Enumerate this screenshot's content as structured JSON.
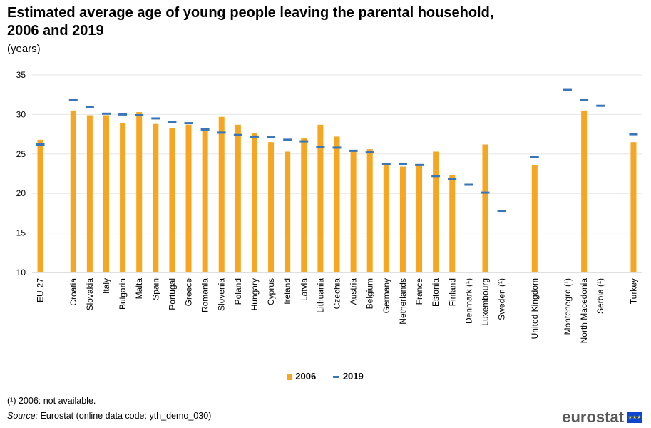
{
  "title": "Estimated average age of young people leaving the parental household, 2006 and 2019",
  "subtitle": "(years)",
  "footnote": "(¹) 2006: not available.",
  "source_label": "Source:",
  "source_text": " Eurostat (online data code: yth_demo_030)",
  "logo_text": "eurostat",
  "colors": {
    "series_2006": "#f5a623",
    "series_2019": "#3a75b8",
    "grid": "#e6e6e6"
  },
  "chart_data": {
    "type": "bar",
    "ylim": [
      10,
      35
    ],
    "yticks": [
      10,
      15,
      20,
      25,
      30,
      35
    ],
    "grid": true,
    "legend_position": "bottom",
    "gap_after": [
      "EU-27",
      "Sweden (¹)",
      "United Kingdom",
      "Serbia (¹)"
    ],
    "categories": [
      "EU-27",
      "Croatia",
      "Slovakia",
      "Italy",
      "Bulgaria",
      "Malta",
      "Spain",
      "Portugal",
      "Greece",
      "Romania",
      "Slovenia",
      "Poland",
      "Hungary",
      "Cyprus",
      "Ireland",
      "Latvia",
      "Lithuania",
      "Czechia",
      "Austria",
      "Belgium",
      "Germany",
      "Netherlands",
      "France",
      "Estonia",
      "Finland",
      "Denmark (¹)",
      "Luxembourg",
      "Sweden (¹)",
      "United Kingdom",
      "Montenegro (¹)",
      "North Macedonia",
      "Serbia (¹)",
      "Turkey"
    ],
    "series": [
      {
        "name": "2006",
        "style": "bar",
        "values": [
          26.8,
          30.5,
          29.9,
          29.9,
          28.9,
          30.3,
          28.8,
          28.3,
          28.7,
          27.9,
          29.7,
          28.7,
          27.6,
          26.5,
          25.3,
          27.0,
          28.7,
          27.2,
          25.5,
          25.6,
          23.9,
          23.4,
          23.5,
          25.3,
          22.3,
          null,
          26.2,
          null,
          23.6,
          null,
          30.5,
          null,
          26.5
        ]
      },
      {
        "name": "2019",
        "style": "dash",
        "values": [
          26.2,
          31.8,
          30.9,
          30.1,
          30.0,
          29.9,
          29.5,
          29.0,
          28.9,
          28.1,
          27.7,
          27.4,
          27.2,
          27.1,
          26.8,
          26.6,
          25.9,
          25.8,
          25.4,
          25.2,
          23.7,
          23.7,
          23.6,
          22.2,
          21.8,
          21.1,
          20.1,
          17.8,
          24.6,
          33.1,
          31.8,
          31.1,
          27.5
        ]
      }
    ]
  }
}
